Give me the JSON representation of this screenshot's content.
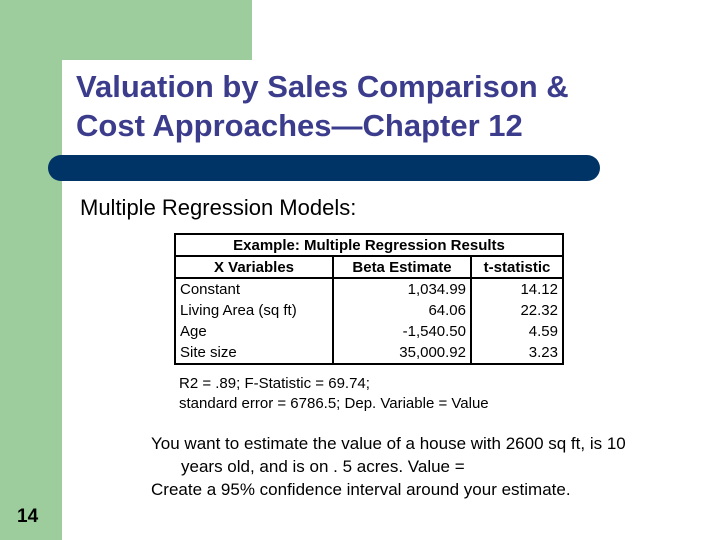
{
  "slide": {
    "title_line1": "Valuation by Sales Comparison &",
    "title_line2": "Cost Approaches—Chapter 12",
    "subtitle": "Multiple Regression Models:",
    "page_number": "14",
    "colors": {
      "sidebar": "#9dcc9d",
      "rule": "#003366",
      "title": "#3c3c8c"
    }
  },
  "table": {
    "caption": "Example: Multiple Regression Results",
    "headers": [
      "X Variables",
      "Beta Estimate",
      "t-statistic"
    ],
    "rows": [
      {
        "variable": "Constant",
        "beta": "1,034.99",
        "t": "14.12"
      },
      {
        "variable": "Living Area (sq ft)",
        "beta": "64.06",
        "t": "22.32"
      },
      {
        "variable": "Age",
        "beta": "-1,540.50",
        "t": "4.59"
      },
      {
        "variable": "Site size",
        "beta": "35,000.92",
        "t": "3.23"
      }
    ]
  },
  "stats": {
    "line1": "R2 = .89; F-Statistic = 69.74;",
    "line2": "standard error = 6786.5; Dep. Variable = Value"
  },
  "prompt": {
    "line1": "You want to estimate the value of a house with 2600 sq ft, is 10",
    "line2": "years old, and is on . 5 acres. Value =",
    "line3": "Create a 95% confidence interval around your estimate."
  }
}
